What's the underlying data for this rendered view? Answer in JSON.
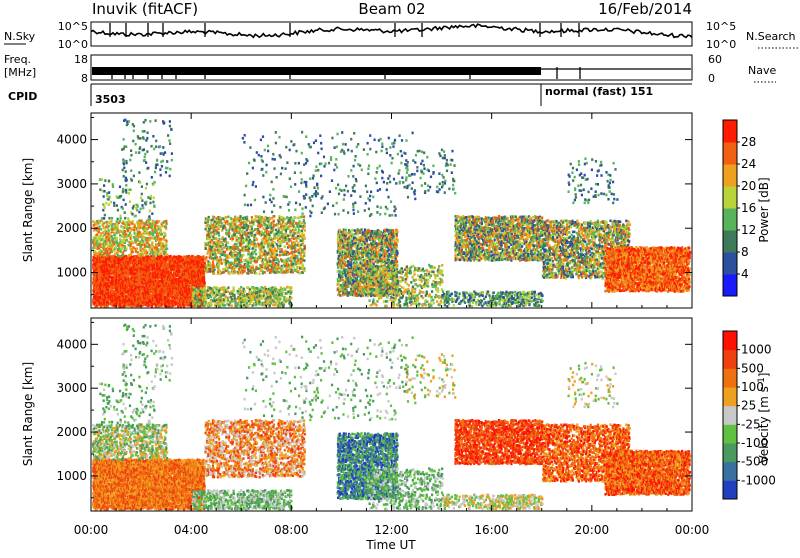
{
  "header": {
    "station": "Inuvik (fitACF)",
    "beam": "Beam 02",
    "date": "16/Feb/2014"
  },
  "top_panels": {
    "nsky_label": "N.Sky",
    "nsky_ticks": [
      "10^5",
      "10^0"
    ],
    "nsearch_label": "N.Search",
    "nsearch_ticks": [
      "10^5",
      "10^0"
    ],
    "freq_label_1": "Freq.",
    "freq_label_2": "[MHz]",
    "freq_ticks": [
      "18",
      "8"
    ],
    "nave_label": "Nave",
    "nave_ticks": [
      "60",
      "0"
    ],
    "cpid_label": "CPID",
    "cpid_value_1": "3503",
    "cpid_value_2": "normal (fast) 151"
  },
  "chart_data": [
    {
      "type": "heatmap",
      "name": "power-panel",
      "xlabel": "Time UT",
      "ylabel": "Slant Range [km]",
      "x_tick_labels": [
        "00:00",
        "04:00",
        "08:00",
        "12:00",
        "16:00",
        "20:00",
        "00:00"
      ],
      "x_range_hours": [
        0,
        24
      ],
      "y_ticks": [
        1000,
        2000,
        3000,
        4000
      ],
      "y_range": [
        200,
        4600
      ],
      "colorbar_label": "Power [dB]",
      "colorbar_ticks": [
        "28",
        "24",
        "20",
        "16",
        "12",
        "8",
        "4"
      ],
      "colorbar_range": [
        0,
        32
      ],
      "colorbar_colors": [
        "#1a1aff",
        "#2c4fa0",
        "#3c7a5a",
        "#58b45a",
        "#b8d43a",
        "#f0a020",
        "#f06010",
        "#ff1a00"
      ]
    },
    {
      "type": "heatmap",
      "name": "velocity-panel",
      "xlabel": "Time UT",
      "ylabel": "Slant Range [km]",
      "x_tick_labels": [
        "00:00",
        "04:00",
        "08:00",
        "12:00",
        "16:00",
        "20:00",
        "00:00"
      ],
      "x_range_hours": [
        0,
        24
      ],
      "y_ticks": [
        1000,
        2000,
        3000,
        4000
      ],
      "y_range": [
        200,
        4600
      ],
      "colorbar_label": "Velocity [m s^-1]",
      "colorbar_ticks": [
        "1000",
        "500",
        "100",
        "25",
        "-25",
        "-100",
        "-500",
        "-1000"
      ],
      "colorbar_colors": [
        "#2040c0",
        "#3a70a0",
        "#4a9a60",
        "#60c040",
        "#c8c8c8",
        "#f0a020",
        "#f07010",
        "#f04010",
        "#ff1000"
      ]
    }
  ]
}
